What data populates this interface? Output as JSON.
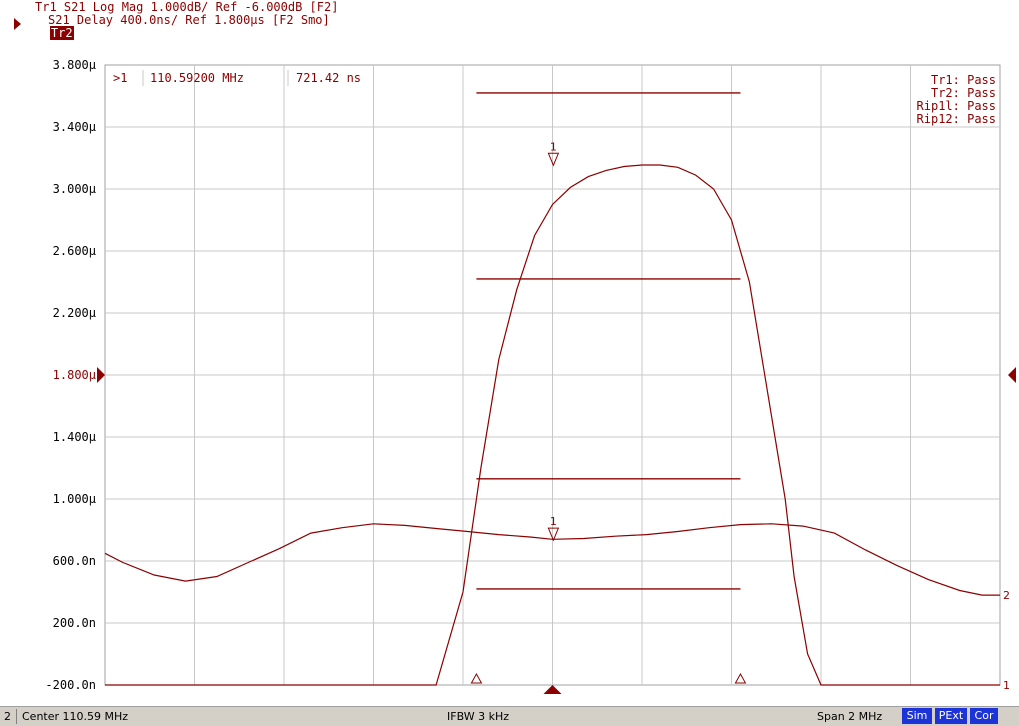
{
  "header": {
    "trace1": "Tr1 S21 Log Mag 1.000dB/ Ref -6.000dB [F2]",
    "trace2_badge": "Tr2",
    "trace2": "S21 Delay 400.0ns/ Ref 1.800µs [F2 Smo]"
  },
  "marker_readout": {
    "marker": ">1",
    "frequency": "110.59200 MHz",
    "value": "721.42 ns"
  },
  "limit_status": [
    "Tr1: Pass",
    "Tr2: Pass",
    "Rip1l: Pass",
    "Rip12: Pass"
  ],
  "status_bar": {
    "channel": "2",
    "center": "Center 110.59 MHz",
    "ifbw": "IFBW 3 kHz",
    "span": "Span 2 MHz",
    "badges": [
      "Sim",
      "PExt",
      "Cor"
    ]
  },
  "colors": {
    "trace": "#8b0000",
    "grid": "#c8c8c8",
    "badge": "#1c33d8"
  },
  "chart_data": {
    "type": "line",
    "title": "",
    "xlabel": "",
    "ylabel": "",
    "x_unit": "MHz",
    "xlim": [
      109.59,
      111.59
    ],
    "ylim_trace2_ns": [
      -200,
      3800
    ],
    "y_tick_labels": [
      "3.800µ",
      "3.400µ",
      "3.000µ",
      "2.600µ",
      "2.200µ",
      "1.800µ",
      "1.400µ",
      "1.000µ",
      "600.0n",
      "200.0n",
      "-200.0n"
    ],
    "reference_level_ns": 1800,
    "grid": true,
    "series": [
      {
        "name": "Tr1",
        "units": "ns-scale",
        "end_label": "1",
        "x": [
          109.59,
          110.33,
          110.39,
          110.43,
          110.47,
          110.51,
          110.55,
          110.59,
          110.63,
          110.67,
          110.71,
          110.75,
          110.79,
          110.83,
          110.87,
          110.91,
          110.95,
          110.99,
          111.03,
          111.07,
          111.11,
          111.13,
          111.16,
          111.19,
          111.24,
          111.59
        ],
        "y": [
          -200,
          -200,
          400,
          1200,
          1900,
          2350,
          2700,
          2900,
          3010,
          3080,
          3120,
          3145,
          3155,
          3155,
          3140,
          3090,
          3000,
          2800,
          2400,
          1700,
          1000,
          500,
          0,
          -200,
          -200,
          -200
        ]
      },
      {
        "name": "Tr2",
        "units": "ns",
        "end_label": "2",
        "x": [
          109.59,
          109.63,
          109.7,
          109.77,
          109.84,
          109.91,
          109.98,
          110.05,
          110.12,
          110.19,
          110.26,
          110.33,
          110.4,
          110.47,
          110.54,
          110.59,
          110.66,
          110.73,
          110.8,
          110.87,
          110.94,
          111.01,
          111.08,
          111.15,
          111.22,
          111.29,
          111.36,
          111.43,
          111.5,
          111.55,
          111.59
        ],
        "y": [
          650,
          590,
          510,
          470,
          500,
          590,
          680,
          780,
          815,
          840,
          830,
          810,
          790,
          770,
          755,
          740,
          745,
          760,
          770,
          790,
          815,
          835,
          840,
          825,
          780,
          670,
          570,
          480,
          410,
          380,
          380
        ]
      }
    ],
    "limit_lines_ns": [
      {
        "x": [
          110.42,
          111.01
        ],
        "y": 3620
      },
      {
        "x": [
          110.42,
          111.01
        ],
        "y": 2420
      },
      {
        "x": [
          110.42,
          111.01
        ],
        "y": 1130
      },
      {
        "x": [
          110.42,
          111.01
        ],
        "y": 420
      }
    ],
    "markers": [
      {
        "label": "1",
        "trace": "Tr1",
        "x": 110.592,
        "y": 3140
      },
      {
        "label": "1",
        "trace": "Tr2",
        "x": 110.592,
        "y": 721.42
      }
    ],
    "delta_markers_x": [
      110.42,
      111.01
    ],
    "center_marker_x": 110.59
  }
}
